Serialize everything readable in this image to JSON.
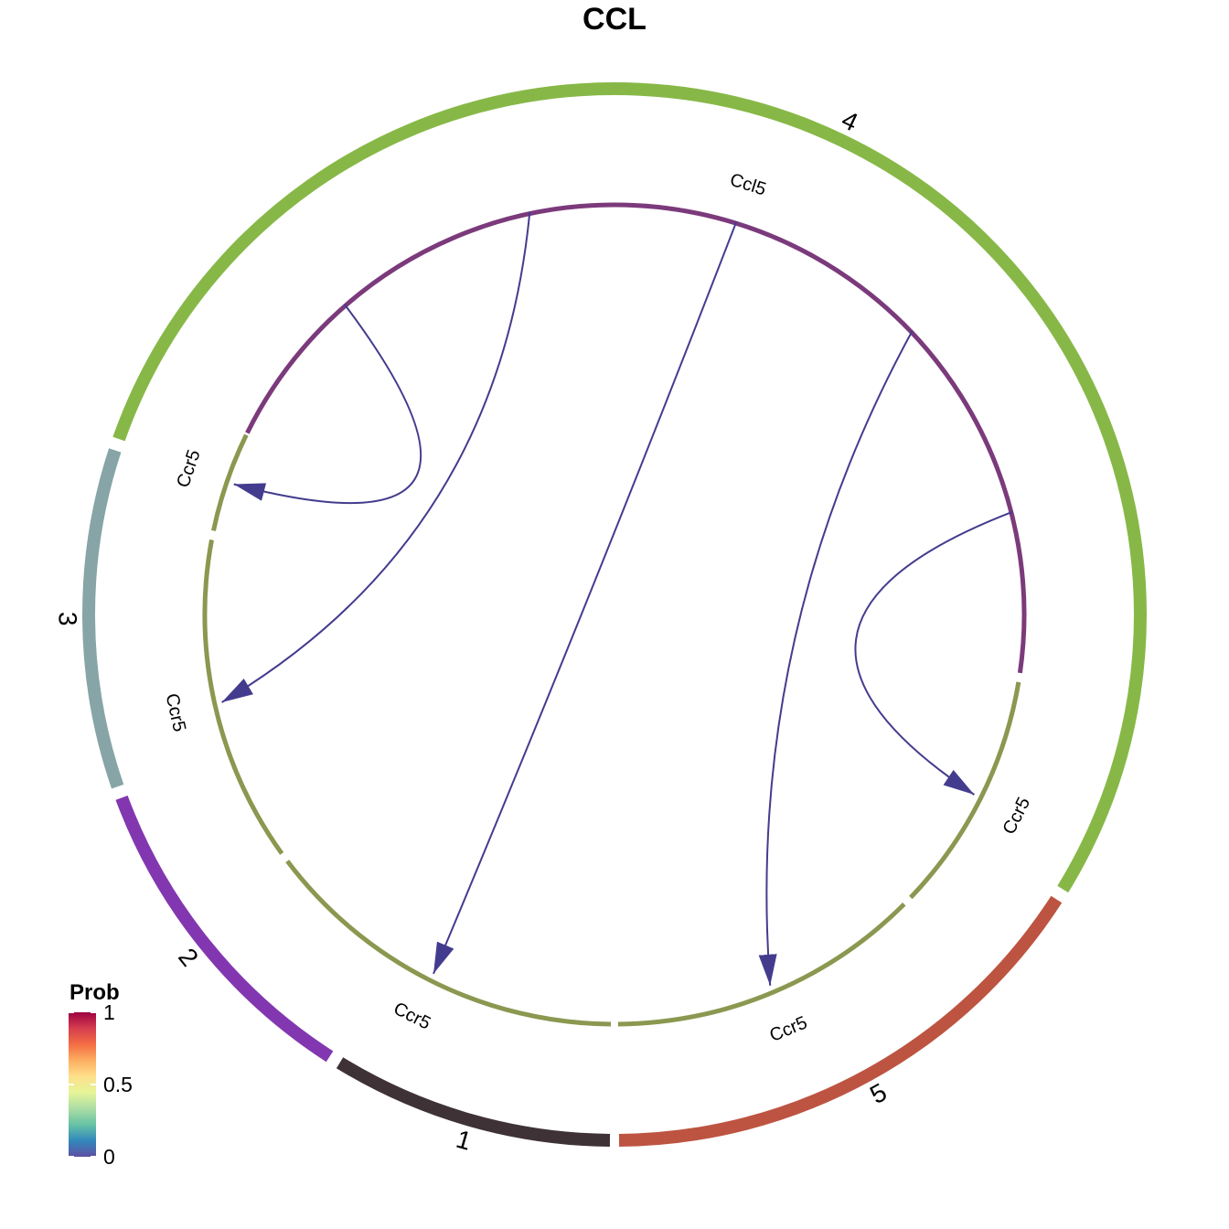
{
  "title": "CCL",
  "groups": [
    {
      "id": "1",
      "label": "1",
      "color": "#3e3236",
      "start_deg": 90.5,
      "end_deg": 121.5
    },
    {
      "id": "2",
      "label": "2",
      "color": "#8237b0",
      "start_deg": 122.8,
      "end_deg": 159.6
    },
    {
      "id": "3",
      "label": "3",
      "color": "#87a4a6",
      "start_deg": 160.9,
      "end_deg": 198.2
    },
    {
      "id": "4",
      "label": "4",
      "color": "#87b847",
      "start_deg": 199.5,
      "end_deg": 391.5
    },
    {
      "id": "5",
      "label": "5",
      "color": "#bd5441",
      "start_deg": 392.8,
      "end_deg": 449.5
    }
  ],
  "sectors": [
    {
      "id": "s-ccl5",
      "label": "Ccl5",
      "color": "#7b3a7b",
      "start_deg": 206.3,
      "end_deg": 368.2
    },
    {
      "id": "s-ccr5-a",
      "label": "Ccr5",
      "color": "#8a9850",
      "start_deg": 369.5,
      "end_deg": 403.7
    },
    {
      "id": "s-ccr5-b",
      "label": "Ccr5",
      "color": "#8a9850",
      "start_deg": 405.0,
      "end_deg": 449.5
    },
    {
      "id": "s-ccr5-c",
      "label": "Ccr5",
      "color": "#8a9850",
      "start_deg": 450.5,
      "end_deg": 503.0
    },
    {
      "id": "s-ccr5-d",
      "label": "Ccr5",
      "color": "#8a9850",
      "start_deg": 504.3,
      "end_deg": 550.5
    },
    {
      "id": "s-ccr5-e",
      "label": "Ccr5",
      "color": "#8a9850",
      "start_deg": 551.8,
      "end_deg": 566.0
    }
  ],
  "links": [
    {
      "from": "s-ccl5",
      "to": "s-ccr5-a",
      "prob": 0.02
    },
    {
      "from": "s-ccl5",
      "to": "s-ccr5-b",
      "prob": 0.02
    },
    {
      "from": "s-ccl5",
      "to": "s-ccr5-c",
      "prob": 0.02
    },
    {
      "from": "s-ccl5",
      "to": "s-ccr5-d",
      "prob": 0.02
    },
    {
      "from": "s-ccl5",
      "to": "s-ccr5-e",
      "prob": 0.02
    }
  ],
  "link_color": "#433c8e",
  "legend": {
    "title": "Prob",
    "ticks": [
      "1",
      "0.5",
      "0"
    ],
    "tick_values": [
      1,
      0.5,
      0
    ],
    "gradient": [
      "#9e0142",
      "#d53e4f",
      "#f46d43",
      "#fdae61",
      "#fee08b",
      "#e6f598",
      "#abdda4",
      "#66c2a5",
      "#3288bd",
      "#5e4fa2"
    ]
  }
}
